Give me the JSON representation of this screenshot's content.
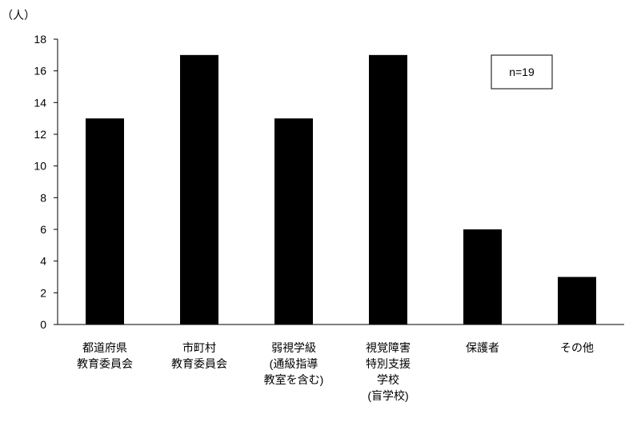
{
  "chart_data": {
    "type": "bar",
    "title": "",
    "ylabel": "（人）",
    "xlabel": "",
    "ylim": [
      0,
      18
    ],
    "yticks": [
      0,
      2,
      4,
      6,
      8,
      10,
      12,
      14,
      16,
      18
    ],
    "grid": false,
    "categories": [
      "都道府県\n教育委員会",
      "市町村\n教育委員会",
      "弱視学級\n(通級指導\n教室を含む)",
      "視覚障害\n特別支援\n学校\n(盲学校)",
      "保護者",
      "その他"
    ],
    "values": [
      13,
      17,
      13,
      17,
      6,
      3
    ],
    "annotation": "n=19",
    "bar_color": "#000000"
  }
}
